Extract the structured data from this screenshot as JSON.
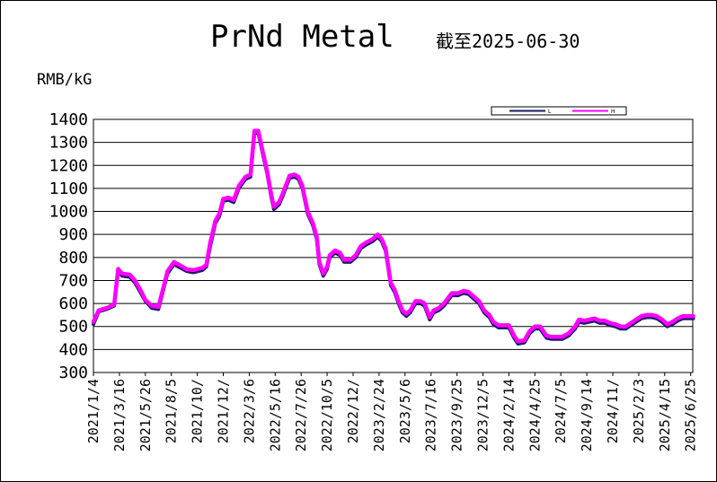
{
  "title": "PrNd Metal",
  "subtitle": "截至2025-06-30",
  "unit_label": "RMB/kG",
  "colors": {
    "low": "#1a1a66",
    "high": "#ff00ff",
    "axis": "#000000",
    "grid": "#000000"
  },
  "chart_data": {
    "type": "line",
    "title": "PrNd Metal",
    "subtitle": "截至2025-06-30",
    "ylabel": "RMB/kG",
    "ylim": [
      300,
      1400
    ],
    "yticks": [
      300,
      400,
      500,
      600,
      700,
      800,
      900,
      1000,
      1100,
      1200,
      1300,
      1400
    ],
    "grid": true,
    "legend_position": "top-right",
    "x_tick_labels": [
      "2021/1/4",
      "2021/3/16",
      "2021/5/26",
      "2021/8/5",
      "2021/10/",
      "2021/12/",
      "2022/3/6",
      "2022/5/16",
      "2022/7/26",
      "2022/10/5",
      "2022/12/",
      "2023/2/24",
      "2023/5/6",
      "2023/7/16",
      "2023/9/25",
      "2023/12/5",
      "2024/2/14",
      "2024/4/25",
      "2024/7/5",
      "2024/9/14",
      "2024/11/",
      "2025/2/3",
      "2025/4/15",
      "2025/6/25"
    ],
    "x_range": [
      0,
      23.1
    ],
    "series": [
      {
        "name": "L",
        "color": "#1a1a66",
        "points": [
          [
            0,
            510
          ],
          [
            0.2,
            565
          ],
          [
            0.5,
            575
          ],
          [
            0.8,
            590
          ],
          [
            0.95,
            740
          ],
          [
            1.1,
            720
          ],
          [
            1.4,
            715
          ],
          [
            1.6,
            690
          ],
          [
            1.85,
            640
          ],
          [
            2,
            610
          ],
          [
            2.25,
            580
          ],
          [
            2.5,
            575
          ],
          [
            2.65,
            640
          ],
          [
            2.85,
            730
          ],
          [
            3.1,
            770
          ],
          [
            3.35,
            755
          ],
          [
            3.6,
            740
          ],
          [
            3.85,
            735
          ],
          [
            4.2,
            745
          ],
          [
            4.35,
            760
          ],
          [
            4.5,
            850
          ],
          [
            4.7,
            950
          ],
          [
            4.85,
            980
          ],
          [
            5,
            1045
          ],
          [
            5.2,
            1050
          ],
          [
            5.4,
            1040
          ],
          [
            5.6,
            1100
          ],
          [
            5.85,
            1140
          ],
          [
            6.05,
            1150
          ],
          [
            6.2,
            1340
          ],
          [
            6.35,
            1340
          ],
          [
            6.5,
            1260
          ],
          [
            6.7,
            1160
          ],
          [
            6.85,
            1060
          ],
          [
            6.95,
            1010
          ],
          [
            7.15,
            1030
          ],
          [
            7.3,
            1070
          ],
          [
            7.55,
            1145
          ],
          [
            7.75,
            1150
          ],
          [
            7.9,
            1140
          ],
          [
            8.05,
            1100
          ],
          [
            8.25,
            990
          ],
          [
            8.45,
            940
          ],
          [
            8.6,
            880
          ],
          [
            8.7,
            770
          ],
          [
            8.85,
            720
          ],
          [
            9.0,
            750
          ],
          [
            9.1,
            800
          ],
          [
            9.3,
            820
          ],
          [
            9.5,
            810
          ],
          [
            9.65,
            780
          ],
          [
            9.9,
            780
          ],
          [
            10.1,
            800
          ],
          [
            10.3,
            840
          ],
          [
            10.5,
            855
          ],
          [
            10.75,
            870
          ],
          [
            10.95,
            890
          ],
          [
            11.1,
            870
          ],
          [
            11.25,
            830
          ],
          [
            11.45,
            680
          ],
          [
            11.6,
            650
          ],
          [
            11.75,
            600
          ],
          [
            11.9,
            560
          ],
          [
            12.05,
            545
          ],
          [
            12.2,
            560
          ],
          [
            12.4,
            600
          ],
          [
            12.6,
            600
          ],
          [
            12.75,
            590
          ],
          [
            12.95,
            530
          ],
          [
            13.1,
            560
          ],
          [
            13.3,
            570
          ],
          [
            13.5,
            590
          ],
          [
            13.8,
            635
          ],
          [
            14.05,
            635
          ],
          [
            14.25,
            645
          ],
          [
            14.45,
            640
          ],
          [
            14.65,
            620
          ],
          [
            14.85,
            600
          ],
          [
            15.05,
            560
          ],
          [
            15.25,
            540
          ],
          [
            15.4,
            510
          ],
          [
            15.6,
            495
          ],
          [
            15.8,
            495
          ],
          [
            16.0,
            495
          ],
          [
            16.2,
            450
          ],
          [
            16.35,
            425
          ],
          [
            16.6,
            430
          ],
          [
            16.8,
            470
          ],
          [
            17.0,
            490
          ],
          [
            17.2,
            490
          ],
          [
            17.45,
            450
          ],
          [
            17.65,
            445
          ],
          [
            17.85,
            445
          ],
          [
            18.05,
            445
          ],
          [
            18.3,
            460
          ],
          [
            18.55,
            490
          ],
          [
            18.7,
            520
          ],
          [
            18.9,
            515
          ],
          [
            19.1,
            520
          ],
          [
            19.3,
            525
          ],
          [
            19.5,
            515
          ],
          [
            19.7,
            515
          ],
          [
            19.9,
            505
          ],
          [
            20.1,
            500
          ],
          [
            20.3,
            490
          ],
          [
            20.5,
            490
          ],
          [
            20.7,
            505
          ],
          [
            20.9,
            520
          ],
          [
            21.1,
            535
          ],
          [
            21.3,
            540
          ],
          [
            21.5,
            540
          ],
          [
            21.7,
            535
          ],
          [
            21.9,
            520
          ],
          [
            22.1,
            500
          ],
          [
            22.3,
            510
          ],
          [
            22.5,
            525
          ],
          [
            22.7,
            535
          ],
          [
            22.9,
            535
          ],
          [
            23.1,
            535
          ]
        ]
      },
      {
        "name": "H",
        "color": "#ff00ff",
        "points": [
          [
            0,
            520
          ],
          [
            0.2,
            570
          ],
          [
            0.5,
            580
          ],
          [
            0.8,
            595
          ],
          [
            0.95,
            750
          ],
          [
            1.1,
            730
          ],
          [
            1.4,
            725
          ],
          [
            1.6,
            700
          ],
          [
            1.85,
            650
          ],
          [
            2,
            615
          ],
          [
            2.25,
            590
          ],
          [
            2.5,
            585
          ],
          [
            2.65,
            650
          ],
          [
            2.85,
            740
          ],
          [
            3.1,
            780
          ],
          [
            3.35,
            765
          ],
          [
            3.6,
            748
          ],
          [
            3.85,
            745
          ],
          [
            4.2,
            755
          ],
          [
            4.35,
            768
          ],
          [
            4.5,
            865
          ],
          [
            4.7,
            960
          ],
          [
            4.85,
            990
          ],
          [
            5,
            1055
          ],
          [
            5.2,
            1060
          ],
          [
            5.4,
            1050
          ],
          [
            5.6,
            1110
          ],
          [
            5.85,
            1150
          ],
          [
            6.05,
            1160
          ],
          [
            6.2,
            1350
          ],
          [
            6.35,
            1350
          ],
          [
            6.5,
            1270
          ],
          [
            6.7,
            1170
          ],
          [
            6.85,
            1070
          ],
          [
            6.95,
            1020
          ],
          [
            7.15,
            1040
          ],
          [
            7.3,
            1080
          ],
          [
            7.55,
            1155
          ],
          [
            7.75,
            1160
          ],
          [
            7.9,
            1150
          ],
          [
            8.05,
            1110
          ],
          [
            8.25,
            1000
          ],
          [
            8.45,
            950
          ],
          [
            8.6,
            890
          ],
          [
            8.7,
            780
          ],
          [
            8.85,
            730
          ],
          [
            9.0,
            760
          ],
          [
            9.1,
            810
          ],
          [
            9.3,
            830
          ],
          [
            9.5,
            820
          ],
          [
            9.65,
            790
          ],
          [
            9.9,
            790
          ],
          [
            10.1,
            810
          ],
          [
            10.3,
            850
          ],
          [
            10.5,
            865
          ],
          [
            10.75,
            880
          ],
          [
            10.95,
            900
          ],
          [
            11.1,
            880
          ],
          [
            11.25,
            840
          ],
          [
            11.45,
            690
          ],
          [
            11.6,
            660
          ],
          [
            11.75,
            610
          ],
          [
            11.9,
            570
          ],
          [
            12.05,
            555
          ],
          [
            12.2,
            570
          ],
          [
            12.4,
            610
          ],
          [
            12.6,
            610
          ],
          [
            12.75,
            600
          ],
          [
            12.95,
            540
          ],
          [
            13.1,
            570
          ],
          [
            13.3,
            580
          ],
          [
            13.5,
            600
          ],
          [
            13.8,
            645
          ],
          [
            14.05,
            645
          ],
          [
            14.25,
            655
          ],
          [
            14.45,
            650
          ],
          [
            14.65,
            630
          ],
          [
            14.85,
            610
          ],
          [
            15.05,
            570
          ],
          [
            15.25,
            550
          ],
          [
            15.4,
            520
          ],
          [
            15.6,
            505
          ],
          [
            15.8,
            505
          ],
          [
            16.0,
            505
          ],
          [
            16.2,
            460
          ],
          [
            16.35,
            435
          ],
          [
            16.6,
            440
          ],
          [
            16.8,
            480
          ],
          [
            17.0,
            500
          ],
          [
            17.2,
            500
          ],
          [
            17.45,
            460
          ],
          [
            17.65,
            455
          ],
          [
            17.85,
            455
          ],
          [
            18.05,
            455
          ],
          [
            18.3,
            470
          ],
          [
            18.55,
            500
          ],
          [
            18.7,
            530
          ],
          [
            18.9,
            525
          ],
          [
            19.1,
            530
          ],
          [
            19.3,
            535
          ],
          [
            19.5,
            525
          ],
          [
            19.7,
            525
          ],
          [
            19.9,
            515
          ],
          [
            20.1,
            510
          ],
          [
            20.3,
            500
          ],
          [
            20.5,
            500
          ],
          [
            20.7,
            515
          ],
          [
            20.9,
            530
          ],
          [
            21.1,
            545
          ],
          [
            21.3,
            550
          ],
          [
            21.5,
            550
          ],
          [
            21.7,
            545
          ],
          [
            21.9,
            530
          ],
          [
            22.1,
            510
          ],
          [
            22.3,
            520
          ],
          [
            22.5,
            535
          ],
          [
            22.7,
            545
          ],
          [
            22.9,
            545
          ],
          [
            23.1,
            545
          ]
        ]
      }
    ]
  }
}
